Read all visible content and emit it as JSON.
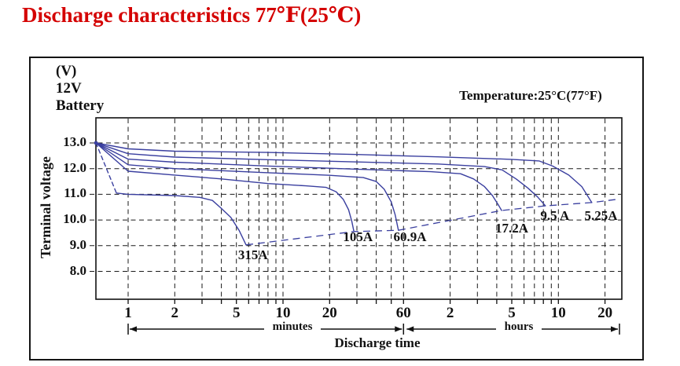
{
  "page": {
    "title": "Discharge characteristics 77℉(25℃)"
  },
  "header": {
    "temperature_label": "Temperature:25°C(77°F)"
  },
  "axes": {
    "battery_lines": [
      "(V)",
      "12V",
      "Battery"
    ],
    "y_title": "Terminal voltage",
    "x_title": "Discharge time",
    "minutes_label": "minutes",
    "hours_label": "hours"
  },
  "chart_data": {
    "type": "line",
    "title": "Discharge characteristics 77°F (25°C)",
    "xlabel": "Discharge time",
    "ylabel": "Terminal voltage (V)",
    "x_scale": "log",
    "x_unit": "minutes",
    "ylim": [
      6.9,
      14.0
    ],
    "xlim_minutes": [
      0.62,
      1540
    ],
    "grid": "dashed",
    "curve_color": "#3a3f9f",
    "grid_color": "#1a1a1a",
    "title_color": "#d40000",
    "y_ticks": [
      {
        "label": "13.0",
        "v": 13.0
      },
      {
        "label": "12.0",
        "v": 12.0
      },
      {
        "label": "11.0",
        "v": 11.0
      },
      {
        "label": "10.0",
        "v": 10.0
      },
      {
        "label": "9.0",
        "v": 9.0
      },
      {
        "label": "8.0",
        "v": 8.0
      }
    ],
    "x_ticks": [
      {
        "label": "1",
        "t": 1
      },
      {
        "label": "2",
        "t": 2
      },
      {
        "label": "5",
        "t": 5
      },
      {
        "label": "10",
        "t": 10
      },
      {
        "label": "20",
        "t": 20
      },
      {
        "label": "60",
        "t": 60
      },
      {
        "label": "2",
        "t": 120
      },
      {
        "label": "5",
        "t": 300
      },
      {
        "label": "10",
        "t": 600
      },
      {
        "label": "20",
        "t": 1200
      }
    ],
    "x_gridlines": [
      1,
      2,
      3,
      4,
      5,
      6,
      7,
      8,
      9,
      10,
      20,
      30,
      40,
      50,
      60,
      120,
      180,
      240,
      300,
      360,
      420,
      480,
      540,
      600,
      1200
    ],
    "series": [
      {
        "name": "315A",
        "head_dashed": true,
        "points": [
          [
            0.62,
            13.0
          ],
          [
            0.84,
            11.05
          ],
          [
            1.0,
            11.0
          ],
          [
            2.0,
            10.95
          ],
          [
            2.9,
            10.88
          ],
          [
            3.5,
            10.76
          ],
          [
            4.0,
            10.45
          ],
          [
            4.6,
            10.1
          ],
          [
            5.2,
            9.6
          ],
          [
            5.77,
            9.03
          ]
        ]
      },
      {
        "name": "105A",
        "head_dashed": false,
        "points": [
          [
            0.62,
            13.0
          ],
          [
            1.0,
            11.9
          ],
          [
            2,
            11.75
          ],
          [
            4,
            11.6
          ],
          [
            8,
            11.42
          ],
          [
            14,
            11.33
          ],
          [
            19,
            11.27
          ],
          [
            22,
            11.1
          ],
          [
            24.5,
            10.8
          ],
          [
            26.5,
            10.4
          ],
          [
            27.8,
            9.95
          ],
          [
            28.7,
            9.55
          ]
        ]
      },
      {
        "name": "60.9A",
        "head_dashed": false,
        "points": [
          [
            0.62,
            13.0
          ],
          [
            1,
            12.15
          ],
          [
            2,
            12.0
          ],
          [
            8,
            11.84
          ],
          [
            20,
            11.74
          ],
          [
            33,
            11.65
          ],
          [
            40,
            11.5
          ],
          [
            45,
            11.2
          ],
          [
            50,
            10.7
          ],
          [
            53,
            10.2
          ],
          [
            55.6,
            9.6
          ]
        ]
      },
      {
        "name": "17.2A",
        "head_dashed": false,
        "points": [
          [
            0.62,
            13.0
          ],
          [
            1,
            12.37
          ],
          [
            2,
            12.25
          ],
          [
            8,
            12.1
          ],
          [
            30,
            11.98
          ],
          [
            90,
            11.88
          ],
          [
            140,
            11.8
          ],
          [
            170,
            11.6
          ],
          [
            200,
            11.3
          ],
          [
            225,
            10.95
          ],
          [
            245,
            10.6
          ],
          [
            258,
            10.37
          ]
        ]
      },
      {
        "name": "9.5 A",
        "head_dashed": false,
        "points": [
          [
            0.62,
            13.0
          ],
          [
            1,
            12.58
          ],
          [
            2,
            12.45
          ],
          [
            8,
            12.35
          ],
          [
            30,
            12.26
          ],
          [
            100,
            12.18
          ],
          [
            200,
            12.08
          ],
          [
            260,
            11.95
          ],
          [
            320,
            11.6
          ],
          [
            380,
            11.25
          ],
          [
            440,
            10.9
          ],
          [
            495,
            10.55
          ]
        ]
      },
      {
        "name": "5.25A",
        "head_dashed": false,
        "points": [
          [
            0.62,
            13.0
          ],
          [
            1,
            12.77
          ],
          [
            2,
            12.68
          ],
          [
            8,
            12.63
          ],
          [
            30,
            12.55
          ],
          [
            100,
            12.46
          ],
          [
            300,
            12.36
          ],
          [
            450,
            12.3
          ],
          [
            550,
            12.1
          ],
          [
            700,
            11.75
          ],
          [
            850,
            11.3
          ],
          [
            986,
            10.68
          ]
        ]
      }
    ],
    "cutoff_line": {
      "style": "dashed",
      "points": [
        [
          5.77,
          9.03
        ],
        [
          28.7,
          9.55
        ],
        [
          55.6,
          9.6
        ],
        [
          258,
          10.37
        ],
        [
          495,
          10.55
        ],
        [
          986,
          10.68
        ],
        [
          1500,
          10.82
        ]
      ]
    },
    "annotations": [
      {
        "text": "315A",
        "t": 6.4,
        "v": 8.62
      },
      {
        "text": "105A",
        "t": 30.5,
        "v": 9.32
      },
      {
        "text": "60.9A",
        "t": 66,
        "v": 9.32
      },
      {
        "text": "17.2A",
        "t": 300,
        "v": 9.68
      },
      {
        "text": "9.5 A",
        "t": 570,
        "v": 10.15
      },
      {
        "text": "5.25A",
        "t": 1130,
        "v": 10.15
      }
    ]
  }
}
